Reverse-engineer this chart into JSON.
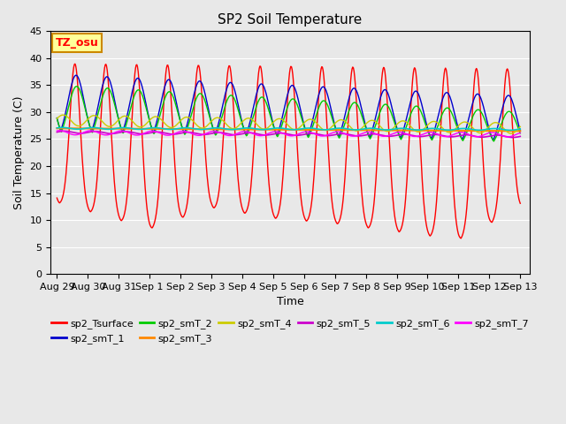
{
  "title": "SP2 Soil Temperature",
  "xlabel": "Time",
  "ylabel": "Soil Temperature (C)",
  "ylim": [
    0,
    45
  ],
  "background_color": "#e8e8e8",
  "plot_bg_color": "#e8e8e8",
  "grid_color": "white",
  "annotation_text": "TZ_osu",
  "annotation_bg": "#ffff99",
  "annotation_border": "#cc8800",
  "series_colors": {
    "sp2_Tsurface": "#ff0000",
    "sp2_smT_1": "#0000cc",
    "sp2_smT_2": "#00cc00",
    "sp2_smT_3": "#ff8800",
    "sp2_smT_4": "#cccc00",
    "sp2_smT_5": "#cc00cc",
    "sp2_smT_6": "#00cccc",
    "sp2_smT_7": "#ff00ff"
  },
  "xtick_labels": [
    "Aug 29",
    "Aug 30",
    "Aug 31",
    "Sep 1",
    "Sep 2",
    "Sep 3",
    "Sep 4",
    "Sep 5",
    "Sep 6",
    "Sep 7",
    "Sep 8",
    "Sep 9",
    "Sep 10",
    "Sep 11",
    "Sep 12",
    "Sep 13"
  ],
  "xtick_positions": [
    0,
    1,
    2,
    3,
    4,
    5,
    6,
    7,
    8,
    9,
    10,
    11,
    12,
    13,
    14,
    15
  ],
  "ytick_positions": [
    0,
    5,
    10,
    15,
    20,
    25,
    30,
    35,
    40,
    45
  ]
}
